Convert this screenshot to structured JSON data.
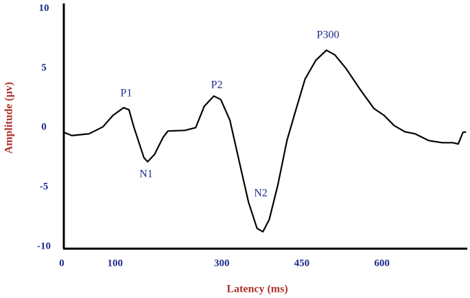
{
  "chart_data": {
    "type": "line",
    "xlabel": "Latency (ms)",
    "ylabel": "Amplitude (µv)",
    "x": [
      4,
      19,
      51,
      77,
      96,
      116,
      126,
      135,
      154,
      161,
      174,
      190,
      199,
      231,
      251,
      267,
      285,
      298,
      315,
      334,
      350,
      366,
      377,
      389,
      405,
      422,
      437,
      456,
      476,
      496,
      512,
      533,
      559,
      585,
      604,
      623,
      643,
      662,
      688,
      713,
      733,
      743,
      752,
      758
    ],
    "series": [
      {
        "color": "#000000",
        "values": [
          -0.63,
          -0.9,
          -0.75,
          -0.17,
          0.8,
          1.44,
          1.27,
          -0.17,
          -2.76,
          -3.1,
          -2.47,
          -1.04,
          -0.52,
          -0.46,
          -0.23,
          1.55,
          2.42,
          2.13,
          0.4,
          -3.34,
          -6.5,
          -8.69,
          -8.98,
          -7.94,
          -5.06,
          -1.32,
          0.98,
          3.85,
          5.41,
          6.27,
          5.87,
          4.72,
          2.99,
          1.38,
          0.8,
          -0.06,
          -0.58,
          -0.75,
          -1.32,
          -1.5,
          -1.5,
          -1.61,
          -0.63,
          -0.6
        ]
      }
    ],
    "annotations": [
      "P1",
      "N1",
      "P2",
      "N2",
      "P300"
    ],
    "xlim": [
      0,
      760
    ],
    "xticks": [
      0,
      100,
      300,
      450,
      600
    ],
    "ylim": [
      -10.4,
      10.2
    ],
    "yticks": [
      10,
      5,
      0,
      -5,
      -10
    ],
    "grid": false
  }
}
